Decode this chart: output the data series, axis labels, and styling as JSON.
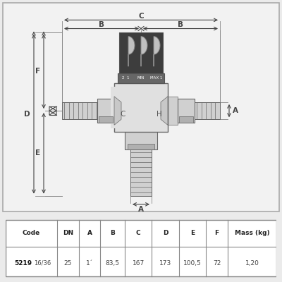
{
  "bg_color": "#ebebeb",
  "drawing_bg": "#f0f0f0",
  "table_headers": [
    "Code",
    "DN",
    "A",
    "B",
    "C",
    "D",
    "E",
    "F",
    "Mass (kg)"
  ],
  "table_data_bold": "5219",
  "table_data_rest": "16/36",
  "table_data": [
    "25",
    "1´",
    "83,5",
    "167",
    "173",
    "100,5",
    "72",
    "1,20"
  ],
  "line_color": "#666666",
  "dark_color": "#444444",
  "knob_color": "#3d3d3d",
  "body_color": "#d0d0d0",
  "body_light": "#e0e0e0",
  "body_dark": "#b0b0b0",
  "dim_color": "#444444"
}
